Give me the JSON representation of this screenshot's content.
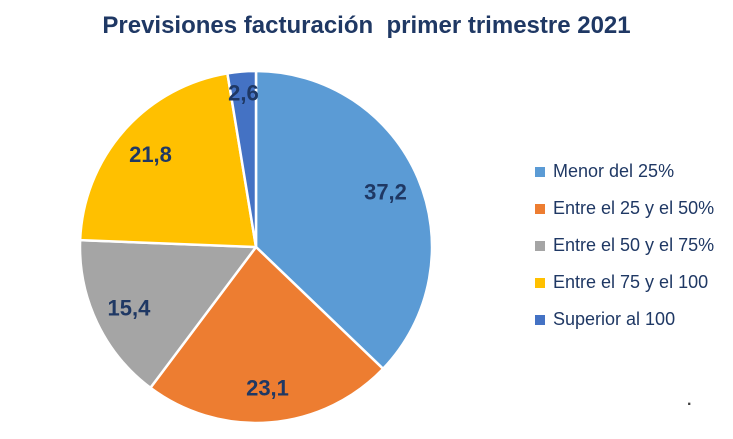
{
  "chart_data": {
    "type": "pie",
    "title": "Previsiones facturación  primer trimestre 2021",
    "categories": [
      "Menor del 25%",
      "Entre el 25 y el 50%",
      "Entre el 50 y el 75%",
      "Entre el 75 y el 100",
      "Superior al 100"
    ],
    "values": [
      37.2,
      23.1,
      15.4,
      21.8,
      2.6
    ],
    "value_labels": [
      "37,2",
      "23,1",
      "15,4",
      "21,8",
      "2,6"
    ],
    "colors": [
      "#5B9BD5",
      "#ED7D31",
      "#A5A5A5",
      "#FFC000",
      "#4472C4"
    ],
    "start_angle_deg": 0,
    "direction": "clockwise",
    "legend_position": "right",
    "title_color": "#1F3864",
    "label_color": "#1F3864",
    "slice_border_color": "#FFFFFF",
    "background_color": "#FFFFFF"
  },
  "footnote_dot": "."
}
